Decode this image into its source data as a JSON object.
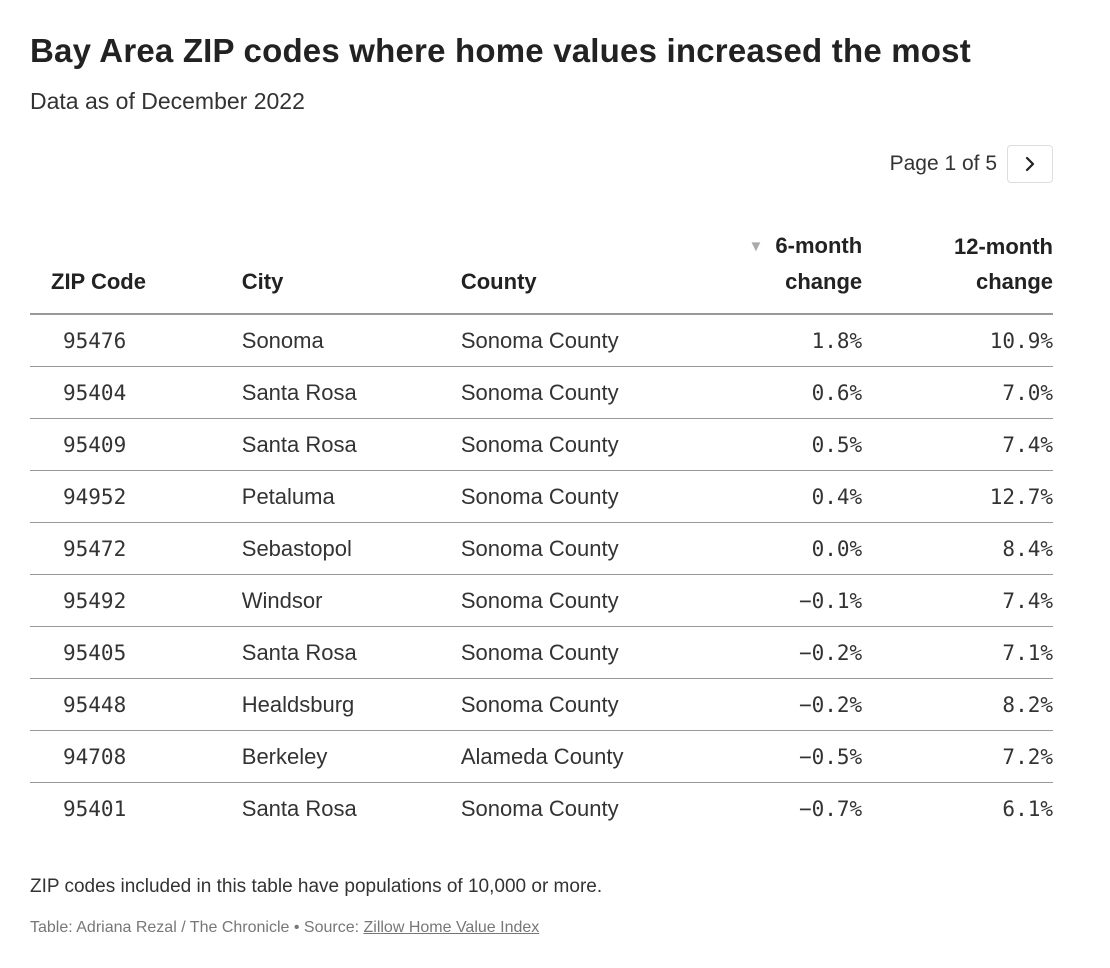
{
  "header": {
    "title": "Bay Area ZIP codes where home values increased the most",
    "subtitle": "Data as of December 2022"
  },
  "pager": {
    "label": "Page 1 of 5",
    "next_icon": "chevron-right-icon"
  },
  "table": {
    "columns": {
      "zip": "ZIP Code",
      "city": "City",
      "county": "County",
      "six_month_line1": "6-month",
      "six_month_line2": "change",
      "twelve_month_line1": "12-month",
      "twelve_month_line2": "change"
    },
    "sort_indicator": "▼",
    "rows": [
      {
        "zip": "95476",
        "city": "Sonoma",
        "county": "Sonoma County",
        "six": "1.8%",
        "twelve": "10.9%"
      },
      {
        "zip": "95404",
        "city": "Santa Rosa",
        "county": "Sonoma County",
        "six": "0.6%",
        "twelve": "7.0%"
      },
      {
        "zip": "95409",
        "city": "Santa Rosa",
        "county": "Sonoma County",
        "six": "0.5%",
        "twelve": "7.4%"
      },
      {
        "zip": "94952",
        "city": "Petaluma",
        "county": "Sonoma County",
        "six": "0.4%",
        "twelve": "12.7%"
      },
      {
        "zip": "95472",
        "city": "Sebastopol",
        "county": "Sonoma County",
        "six": "0.0%",
        "twelve": "8.4%"
      },
      {
        "zip": "95492",
        "city": "Windsor",
        "county": "Sonoma County",
        "six": "−0.1%",
        "twelve": "7.4%"
      },
      {
        "zip": "95405",
        "city": "Santa Rosa",
        "county": "Sonoma County",
        "six": "−0.2%",
        "twelve": "7.1%"
      },
      {
        "zip": "95448",
        "city": "Healdsburg",
        "county": "Sonoma County",
        "six": "−0.2%",
        "twelve": "8.2%"
      },
      {
        "zip": "94708",
        "city": "Berkeley",
        "county": "Alameda County",
        "six": "−0.5%",
        "twelve": "7.2%"
      },
      {
        "zip": "95401",
        "city": "Santa Rosa",
        "county": "Sonoma County",
        "six": "−0.7%",
        "twelve": "6.1%"
      }
    ]
  },
  "footer": {
    "note": "ZIP codes included in this table have populations of 10,000 or more.",
    "credit_prefix": "Table: Adriana Rezal / The Chronicle • Source: ",
    "source_link": "Zillow Home Value Index"
  }
}
